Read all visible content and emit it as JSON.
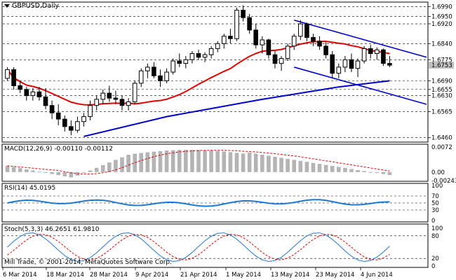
{
  "symbol_title": "GBPUSD,Daily",
  "copyright": "Mill Trade, © 2001-2014, MetaQuotes Software Corp.",
  "colors": {
    "ma_fast": "#e00000",
    "ma_slow": "#0000cc",
    "trendline": "#0000cc",
    "rsi_line": "#1e78d2",
    "stoch_main": "#1e78d2",
    "stoch_signal": "#e00000",
    "macd_hist": "#b4b4b4",
    "macd_signal": "#e00000",
    "current_price_tag": "#c0c0c0"
  },
  "price_scale": {
    "labels": [
      "1.6990",
      "1.6950",
      "1.6920",
      "1.6840",
      "1.6775",
      "1.6753",
      "1.6690",
      "1.6655",
      "1.6630",
      "1.6565",
      "1.6460"
    ],
    "current_price": "1.6753"
  },
  "macd": {
    "label": "MACD(12,26,9) -0.00110 -0.00112",
    "scale": [
      "0.0072",
      "0.00",
      "-0.00243"
    ]
  },
  "rsi": {
    "label": "RSI(14) 45.0195",
    "scale": [
      "100",
      "70",
      "50",
      "30",
      "0"
    ]
  },
  "stoch": {
    "label": "Stoch(5,3,3) 46.2651 61.9810",
    "scale": [
      "100",
      "80",
      "20",
      "0"
    ]
  },
  "time_axis": [
    "6 Mar 2014",
    "18 Mar 2014",
    "28 Mar 2014",
    "9 Apr 2014",
    "21 Apr 2014",
    "1 May 2014",
    "13 May 2014",
    "23 May 2014",
    "4 Jun 2014"
  ],
  "chart_data": {
    "type": "candlestick",
    "title": "GBPUSD,Daily",
    "ylim": [
      1.6445,
      1.7005
    ],
    "candles": [
      {
        "o": 1.67,
        "h": 1.6745,
        "l": 1.669,
        "c": 1.6735
      },
      {
        "o": 1.6735,
        "h": 1.6745,
        "l": 1.6655,
        "c": 1.667
      },
      {
        "o": 1.667,
        "h": 1.669,
        "l": 1.664,
        "c": 1.6655
      },
      {
        "o": 1.6655,
        "h": 1.6665,
        "l": 1.661,
        "c": 1.663
      },
      {
        "o": 1.663,
        "h": 1.666,
        "l": 1.661,
        "c": 1.6645
      },
      {
        "o": 1.6645,
        "h": 1.6665,
        "l": 1.661,
        "c": 1.6625
      },
      {
        "o": 1.6625,
        "h": 1.666,
        "l": 1.6575,
        "c": 1.659
      },
      {
        "o": 1.659,
        "h": 1.661,
        "l": 1.6535,
        "c": 1.656
      },
      {
        "o": 1.656,
        "h": 1.6595,
        "l": 1.651,
        "c": 1.6535
      },
      {
        "o": 1.6535,
        "h": 1.655,
        "l": 1.6485,
        "c": 1.6505
      },
      {
        "o": 1.6505,
        "h": 1.653,
        "l": 1.647,
        "c": 1.649
      },
      {
        "o": 1.649,
        "h": 1.6545,
        "l": 1.648,
        "c": 1.6525
      },
      {
        "o": 1.6525,
        "h": 1.656,
        "l": 1.6505,
        "c": 1.6545
      },
      {
        "o": 1.6545,
        "h": 1.661,
        "l": 1.653,
        "c": 1.659
      },
      {
        "o": 1.659,
        "h": 1.663,
        "l": 1.657,
        "c": 1.6615
      },
      {
        "o": 1.6615,
        "h": 1.6655,
        "l": 1.6595,
        "c": 1.664
      },
      {
        "o": 1.664,
        "h": 1.667,
        "l": 1.6605,
        "c": 1.662
      },
      {
        "o": 1.662,
        "h": 1.665,
        "l": 1.6595,
        "c": 1.6615
      },
      {
        "o": 1.6615,
        "h": 1.663,
        "l": 1.657,
        "c": 1.659
      },
      {
        "o": 1.659,
        "h": 1.662,
        "l": 1.657,
        "c": 1.6605
      },
      {
        "o": 1.6605,
        "h": 1.669,
        "l": 1.6595,
        "c": 1.668
      },
      {
        "o": 1.668,
        "h": 1.674,
        "l": 1.6665,
        "c": 1.673
      },
      {
        "o": 1.673,
        "h": 1.676,
        "l": 1.67,
        "c": 1.6745
      },
      {
        "o": 1.6745,
        "h": 1.6765,
        "l": 1.67,
        "c": 1.671
      },
      {
        "o": 1.671,
        "h": 1.6735,
        "l": 1.6665,
        "c": 1.669
      },
      {
        "o": 1.669,
        "h": 1.674,
        "l": 1.668,
        "c": 1.6725
      },
      {
        "o": 1.6725,
        "h": 1.678,
        "l": 1.6715,
        "c": 1.677
      },
      {
        "o": 1.677,
        "h": 1.68,
        "l": 1.6745,
        "c": 1.676
      },
      {
        "o": 1.676,
        "h": 1.679,
        "l": 1.674,
        "c": 1.6775
      },
      {
        "o": 1.6775,
        "h": 1.681,
        "l": 1.676,
        "c": 1.68
      },
      {
        "o": 1.68,
        "h": 1.6815,
        "l": 1.6775,
        "c": 1.6785
      },
      {
        "o": 1.6785,
        "h": 1.6805,
        "l": 1.6765,
        "c": 1.6795
      },
      {
        "o": 1.6795,
        "h": 1.683,
        "l": 1.678,
        "c": 1.682
      },
      {
        "o": 1.682,
        "h": 1.685,
        "l": 1.6805,
        "c": 1.684
      },
      {
        "o": 1.684,
        "h": 1.688,
        "l": 1.682,
        "c": 1.687
      },
      {
        "o": 1.687,
        "h": 1.69,
        "l": 1.684,
        "c": 1.686
      },
      {
        "o": 1.686,
        "h": 1.6985,
        "l": 1.685,
        "c": 1.6975
      },
      {
        "o": 1.6975,
        "h": 1.6995,
        "l": 1.693,
        "c": 1.6945
      },
      {
        "o": 1.6945,
        "h": 1.696,
        "l": 1.688,
        "c": 1.6895
      },
      {
        "o": 1.6895,
        "h": 1.692,
        "l": 1.682,
        "c": 1.6835
      },
      {
        "o": 1.6835,
        "h": 1.687,
        "l": 1.68,
        "c": 1.6855
      },
      {
        "o": 1.6855,
        "h": 1.686,
        "l": 1.678,
        "c": 1.6795
      },
      {
        "o": 1.6795,
        "h": 1.681,
        "l": 1.674,
        "c": 1.676
      },
      {
        "o": 1.676,
        "h": 1.679,
        "l": 1.673,
        "c": 1.678
      },
      {
        "o": 1.678,
        "h": 1.684,
        "l": 1.677,
        "c": 1.683
      },
      {
        "o": 1.683,
        "h": 1.688,
        "l": 1.6815,
        "c": 1.687
      },
      {
        "o": 1.687,
        "h": 1.6935,
        "l": 1.6855,
        "c": 1.692
      },
      {
        "o": 1.692,
        "h": 1.6925,
        "l": 1.685,
        "c": 1.6865
      },
      {
        "o": 1.6865,
        "h": 1.688,
        "l": 1.683,
        "c": 1.685
      },
      {
        "o": 1.685,
        "h": 1.687,
        "l": 1.6815,
        "c": 1.683
      },
      {
        "o": 1.683,
        "h": 1.6845,
        "l": 1.678,
        "c": 1.6795
      },
      {
        "o": 1.6795,
        "h": 1.681,
        "l": 1.67,
        "c": 1.672
      },
      {
        "o": 1.672,
        "h": 1.676,
        "l": 1.67,
        "c": 1.6745
      },
      {
        "o": 1.6745,
        "h": 1.679,
        "l": 1.6725,
        "c": 1.6775
      },
      {
        "o": 1.6775,
        "h": 1.68,
        "l": 1.6725,
        "c": 1.674
      },
      {
        "o": 1.674,
        "h": 1.678,
        "l": 1.6705,
        "c": 1.677
      },
      {
        "o": 1.677,
        "h": 1.683,
        "l": 1.676,
        "c": 1.682
      },
      {
        "o": 1.682,
        "h": 1.6835,
        "l": 1.678,
        "c": 1.68
      },
      {
        "o": 1.68,
        "h": 1.6825,
        "l": 1.6775,
        "c": 1.6815
      },
      {
        "o": 1.6815,
        "h": 1.682,
        "l": 1.675,
        "c": 1.676
      },
      {
        "o": 1.676,
        "h": 1.679,
        "l": 1.6745,
        "c": 1.6753
      }
    ]
  }
}
